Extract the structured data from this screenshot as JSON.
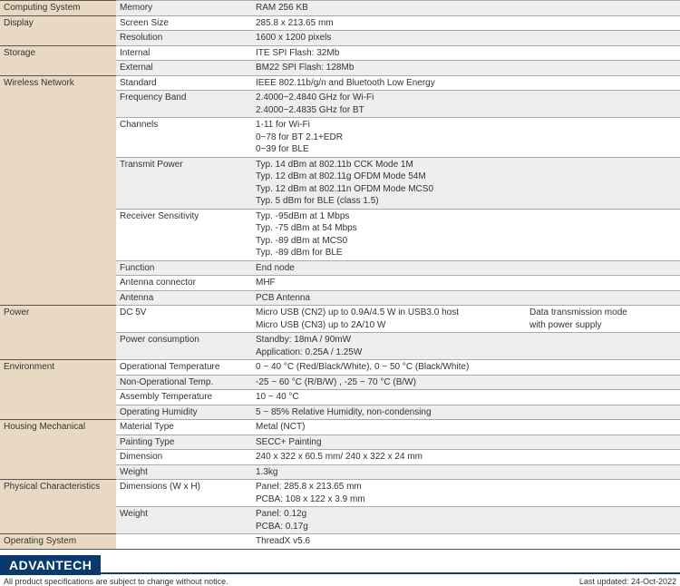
{
  "colors": {
    "cat_bg": "#e9d9c2",
    "alt_bg": "#eeeeee",
    "plain_bg": "#ffffff",
    "border_major": "#555555",
    "border_minor": "#aaaaaa",
    "brand": "#0a3a6b"
  },
  "sections": [
    {
      "category": "Computing System",
      "rows": [
        {
          "attr": "Memory",
          "value": "RAM 256 KB",
          "shade": "alt"
        }
      ]
    },
    {
      "category": "Display",
      "rows": [
        {
          "attr": "Screen Size",
          "value": "285.8 x 213.65 mm",
          "shade": "plain"
        },
        {
          "attr": "Resolution",
          "value": "1600 x 1200 pixels",
          "shade": "alt"
        }
      ]
    },
    {
      "category": "Storage",
      "rows": [
        {
          "attr": "Internal",
          "value": "ITE SPI Flash: 32Mb",
          "shade": "plain"
        },
        {
          "attr": "External",
          "value": "BM22 SPI Flash: 128Mb",
          "shade": "alt"
        }
      ]
    },
    {
      "category": "Wireless Network",
      "rows": [
        {
          "attr": "Standard",
          "value": "IEEE 802.11b/g/n and Bluetooth Low Energy",
          "shade": "plain"
        },
        {
          "attr": "Frequency Band",
          "value": "2.4000~2.4840 GHz for Wi-Fi\n2.4000~2.4835 GHz for BT",
          "shade": "alt"
        },
        {
          "attr": "Channels",
          "value": "1-11 for Wi-Fi\n0~78 for BT 2.1+EDR\n0~39 for BLE",
          "shade": "plain"
        },
        {
          "attr": "Transmit Power",
          "value": "Typ. 14 dBm at 802.11b CCK Mode 1M\nTyp. 12 dBm at 802.11g OFDM Mode 54M\nTyp. 12 dBm at 802.11n OFDM Mode MCS0\nTyp. 5 dBm for BLE (class 1.5)",
          "shade": "alt"
        },
        {
          "attr": "Receiver Sensitivity",
          "value": "Typ. -95dBm at 1 Mbps\nTyp. -75 dBm at 54 Mbps\nTyp. -89 dBm at MCS0\nTyp. -89 dBm for BLE",
          "shade": "plain"
        },
        {
          "attr": "Function",
          "value": "End node",
          "shade": "alt"
        },
        {
          "attr": "Antenna connector",
          "value": "MHF",
          "shade": "plain"
        },
        {
          "attr": "Antenna",
          "value": "PCB Antenna",
          "shade": "alt"
        }
      ]
    },
    {
      "category": "Power",
      "rows": [
        {
          "attr": "DC 5V",
          "value": "Micro USB (CN2) up to 0.9A/4.5 W in USB3.0 host\nMicro USB (CN3) up to 2A/10 W",
          "extra": "Data transmission mode\nwith power supply",
          "shade": "plain"
        },
        {
          "attr": "Power consumption",
          "value": "Standby: 18mA / 90mW\nApplication: 0.25A / 1.25W",
          "shade": "alt"
        }
      ]
    },
    {
      "category": "Environment",
      "rows": [
        {
          "attr": "Operational Temperature",
          "value": "0 ~ 40 °C (Red/Black/White), 0 ~ 50 °C (Black/White)",
          "shade": "plain"
        },
        {
          "attr": "Non-Operational Temp.",
          "value": "-25 ~ 60 °C (R/B/W) , -25 ~ 70 °C (B/W)",
          "shade": "alt"
        },
        {
          "attr": "Assembly Temperature",
          "value": "10 ~ 40 °C",
          "shade": "plain"
        },
        {
          "attr": "Operating Humidity",
          "value": "5 ~ 85% Relative Humidity, non-condensing",
          "shade": "alt"
        }
      ]
    },
    {
      "category": "Housing Mechanical",
      "rows": [
        {
          "attr": "Material Type",
          "value": "Metal (NCT)",
          "shade": "plain"
        },
        {
          "attr": "Painting Type",
          "value": "SECC+ Painting",
          "shade": "alt"
        },
        {
          "attr": "Dimension",
          "value": "240 x 322 x 60.5 mm/ 240 x 322 x 24 mm",
          "shade": "plain"
        },
        {
          "attr": "Weight",
          "value": "1.3kg",
          "shade": "alt"
        }
      ]
    },
    {
      "category": "Physical Characteristics",
      "rows": [
        {
          "attr": "Dimensions (W x H)",
          "value": "Panel: 285.8 x 213.65 mm\nPCBA: 108 x 122 x 3.9 mm",
          "shade": "plain"
        },
        {
          "attr": "Weight",
          "value": "Panel: 0.12g\nPCBA: 0.17g",
          "shade": "alt"
        }
      ]
    },
    {
      "category": "Operating System",
      "rows": [
        {
          "attr": "",
          "value": "ThreadX v5.6",
          "shade": "plain"
        }
      ]
    }
  ],
  "footer": {
    "brand": "ADVANTECH",
    "disclaimer": "All product specifications are subject to change without notice.",
    "updated": "Last updated: 24-Oct-2022"
  }
}
